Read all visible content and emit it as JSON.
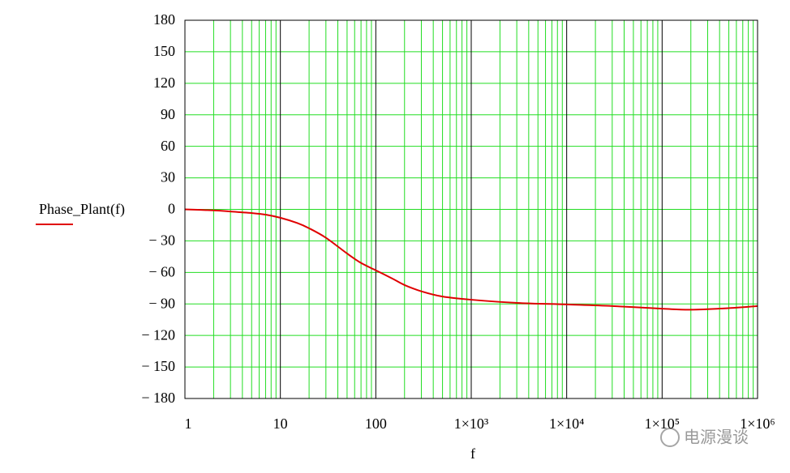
{
  "chart_data": {
    "type": "line",
    "xscale": "log",
    "grid": true,
    "xlabel": "f",
    "x": [
      1,
      2,
      3,
      5,
      7,
      10,
      15,
      20,
      30,
      50,
      70,
      100,
      150,
      200,
      300,
      500,
      1000,
      3000,
      10000,
      30000,
      100000,
      200000,
      500000,
      1000000
    ],
    "series": [
      {
        "name": "Phase_Plant(f)",
        "color": "#e00000",
        "values": [
          0,
          -1,
          -2,
          -3.5,
          -5,
          -8,
          -13,
          -18,
          -27,
          -42,
          -51,
          -58,
          -66,
          -72,
          -78,
          -83,
          -86,
          -89,
          -90.5,
          -92,
          -94.5,
          -95.5,
          -94,
          -92
        ]
      }
    ],
    "xlim": [
      1,
      1000000
    ],
    "xticks": [
      1,
      10,
      100,
      {
        "value": 1000,
        "label": "1×10³"
      },
      {
        "value": 10000,
        "label": "1×10⁴"
      },
      {
        "value": 100000,
        "label": "1×10⁵"
      },
      {
        "value": 1000000,
        "label": "1×10⁶"
      }
    ],
    "ylim": [
      -180,
      180
    ],
    "yticks": [
      {
        "value": -180,
        "label": "− 180"
      },
      {
        "value": -150,
        "label": "− 150"
      },
      {
        "value": -120,
        "label": "− 120"
      },
      {
        "value": -90,
        "label": "− 90"
      },
      {
        "value": -60,
        "label": "− 60"
      },
      {
        "value": -30,
        "label": "− 30"
      },
      0,
      30,
      60,
      90,
      120,
      150,
      180
    ],
    "grid_color": "#22dd22",
    "decade_color": "#000000"
  },
  "watermark": "电源漫谈"
}
